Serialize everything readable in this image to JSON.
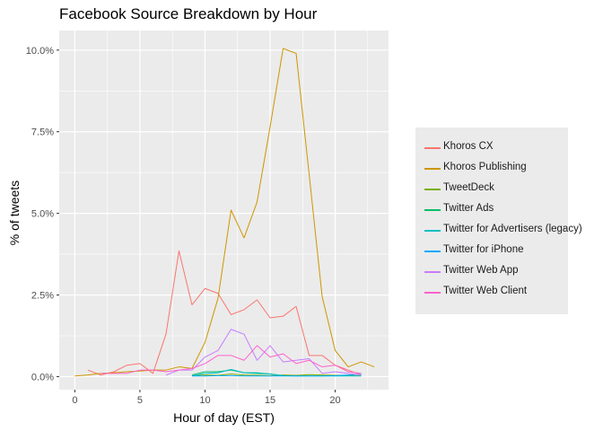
{
  "chart_data": {
    "type": "line",
    "title": "Facebook Source Breakdown by Hour",
    "xlabel": "Hour of day (EST)",
    "ylabel": "% of tweets",
    "xlim": [
      -1.2,
      24.1
    ],
    "ylim": [
      -0.4,
      10.6
    ],
    "xticks": [
      0,
      5,
      10,
      15,
      20
    ],
    "yticks": [
      0,
      2.5,
      5,
      7.5,
      10
    ],
    "ytick_labels": [
      "0.0%",
      "2.5%",
      "5.0%",
      "7.5%",
      "10.0%"
    ],
    "grid": true,
    "legend_position": "right",
    "series": [
      {
        "name": "Khoros CX",
        "color": "#F8766D",
        "x": [
          1,
          2,
          3,
          4,
          5,
          6,
          7,
          8,
          9,
          10,
          11,
          12,
          13,
          14,
          15,
          16,
          17,
          18,
          19,
          20,
          21,
          22
        ],
        "y": [
          0.2,
          0.05,
          0.15,
          0.35,
          0.4,
          0.1,
          1.3,
          3.85,
          2.2,
          2.7,
          2.55,
          1.9,
          2.05,
          2.35,
          1.8,
          1.85,
          2.15,
          0.65,
          0.65,
          0.35,
          0.2,
          0.05
        ]
      },
      {
        "name": "Khoros Publishing",
        "color": "#CD9600",
        "x": [
          0,
          1,
          2,
          3,
          4,
          5,
          6,
          7,
          8,
          9,
          10,
          11,
          12,
          13,
          14,
          15,
          16,
          17,
          18,
          19,
          20,
          21,
          22,
          23
        ],
        "y": [
          0.02,
          0.05,
          0.1,
          0.12,
          0.15,
          0.17,
          0.2,
          0.2,
          0.3,
          0.25,
          1.05,
          2.4,
          5.1,
          4.25,
          5.35,
          7.65,
          10.05,
          9.9,
          6.2,
          2.45,
          0.8,
          0.3,
          0.45,
          0.3
        ]
      },
      {
        "name": "TweetDeck",
        "color": "#7CAE00",
        "x": [
          9,
          10,
          11,
          12,
          13,
          14,
          15,
          16,
          17,
          18,
          19,
          20,
          21,
          22
        ],
        "y": [
          0.03,
          0.05,
          0.04,
          0.08,
          0.05,
          0.04,
          0.03,
          0.05,
          0.04,
          0.06,
          0.05,
          0.04,
          0.03,
          0.03
        ]
      },
      {
        "name": "Twitter Ads",
        "color": "#00BE67",
        "x": [
          9,
          10,
          11,
          12,
          13,
          14,
          15,
          16
        ],
        "y": [
          0.05,
          0.15,
          0.15,
          0.2,
          0.12,
          0.1,
          0.08,
          0.03
        ]
      },
      {
        "name": "Twitter for Advertisers (legacy)",
        "color": "#00BFC4",
        "x": [
          9,
          10,
          11,
          12,
          13,
          14,
          15,
          16,
          17,
          18,
          19,
          20,
          21,
          22
        ],
        "y": [
          0.02,
          0.1,
          0.12,
          0.22,
          0.12,
          0.12,
          0.08,
          0.03,
          0.02,
          0.02,
          0.02,
          0.02,
          0.02,
          0.02
        ]
      },
      {
        "name": "Twitter for iPhone",
        "color": "#00A9FF",
        "x": [
          9,
          10,
          11,
          12,
          13,
          14,
          15,
          16,
          17,
          18,
          19,
          20,
          21,
          22
        ],
        "y": [
          0.02,
          0.02,
          0.03,
          0.03,
          0.02,
          0.02,
          0.02,
          0.02,
          0.02,
          0.02,
          0.02,
          0.03,
          0.05,
          0.07
        ]
      },
      {
        "name": "Twitter Web App",
        "color": "#C77CFF",
        "x": [
          7,
          8,
          9,
          10,
          11,
          12,
          13,
          14,
          15,
          16,
          17,
          18,
          19,
          20,
          21,
          22
        ],
        "y": [
          0.05,
          0.2,
          0.2,
          0.6,
          0.8,
          1.45,
          1.3,
          0.5,
          0.95,
          0.45,
          0.5,
          0.55,
          0.1,
          0.15,
          0.1,
          0.05
        ]
      },
      {
        "name": "Twitter Web Client",
        "color": "#FF61CC",
        "x": [
          2,
          3,
          4,
          5,
          6,
          7,
          8,
          9,
          10,
          11,
          12,
          13,
          14,
          15,
          16,
          17,
          18,
          19,
          20,
          21,
          22
        ],
        "y": [
          0.1,
          0.1,
          0.1,
          0.2,
          0.2,
          0.15,
          0.2,
          0.25,
          0.4,
          0.65,
          0.65,
          0.5,
          0.95,
          0.6,
          0.7,
          0.4,
          0.5,
          0.3,
          0.35,
          0.15,
          0.1
        ]
      }
    ]
  }
}
